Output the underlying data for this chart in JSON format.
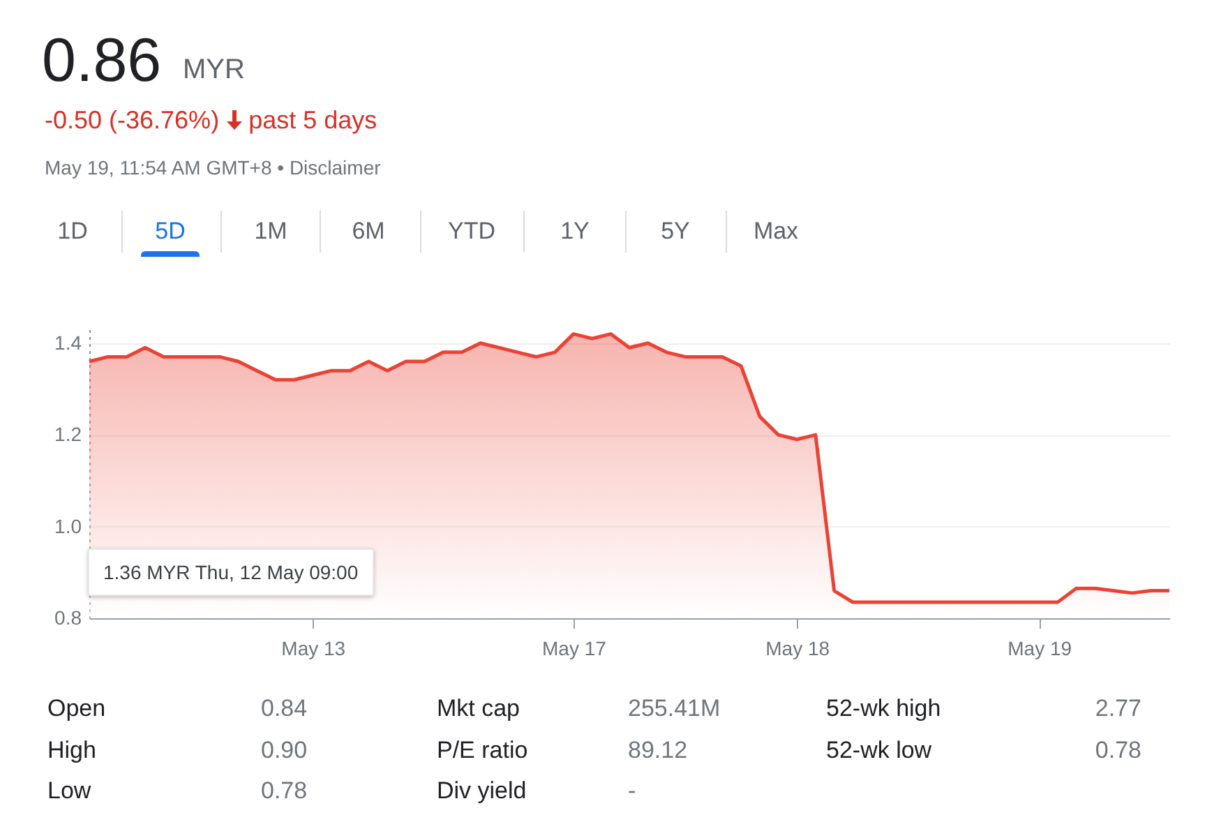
{
  "chart_data": {
    "type": "area",
    "title": "0.86",
    "subtitle": "-0.50 (-36.76%)",
    "categories": [
      null,
      null,
      null,
      null,
      null,
      null,
      null,
      null,
      null,
      null,
      null,
      null,
      "May 13",
      null,
      null,
      null,
      null,
      null,
      null,
      null,
      null,
      null,
      null,
      null,
      null,
      null,
      "May 17",
      null,
      null,
      null,
      null,
      null,
      null,
      null,
      null,
      null,
      null,
      null,
      "May 18",
      null,
      null,
      null,
      null,
      null,
      null,
      null,
      null,
      null,
      null,
      null,
      null,
      "May 19",
      null,
      null,
      null,
      null,
      null,
      null,
      null
    ],
    "series": [
      {
        "color": "#ea4335",
        "values": [
          1.36,
          1.37,
          1.37,
          1.39,
          1.37,
          1.37,
          1.37,
          1.37,
          1.36,
          1.34,
          1.32,
          1.32,
          1.33,
          1.34,
          1.34,
          1.36,
          1.34,
          1.36,
          1.36,
          1.38,
          1.38,
          1.4,
          1.39,
          1.38,
          1.37,
          1.38,
          1.42,
          1.41,
          1.42,
          1.39,
          1.4,
          1.38,
          1.37,
          1.37,
          1.37,
          1.35,
          1.24,
          1.2,
          1.19,
          1.2,
          0.86,
          0.835,
          0.835,
          0.835,
          0.835,
          0.835,
          0.835,
          0.835,
          0.835,
          0.835,
          0.835,
          0.835,
          0.835,
          0.865,
          0.865,
          0.86,
          0.855,
          0.86,
          0.86
        ]
      }
    ],
    "ylim": [
      0.8,
      1.43
    ],
    "yticks": [
      0.8,
      {
        "value": 1.0,
        "label": "1.0"
      },
      1.2,
      1.4
    ],
    "grid": "y",
    "annotations": [
      "MYR",
      "past 5 days",
      "May 19, 11:54 AM GMT+8 • Disclaimer",
      "1D",
      "5D",
      "1M",
      "6M",
      "YTD",
      "1Y",
      "5Y",
      "Max",
      "Open",
      "0.84",
      "Mkt cap",
      "255.41M",
      "52-wk high",
      "2.77",
      "High",
      "0.90",
      "P/E ratio",
      "89.12",
      "52-wk low",
      "0.78",
      "Low",
      "0.78",
      "Div yield",
      "-",
      "1.36 MYR  Thu, 12 May 09:00"
    ]
  }
}
